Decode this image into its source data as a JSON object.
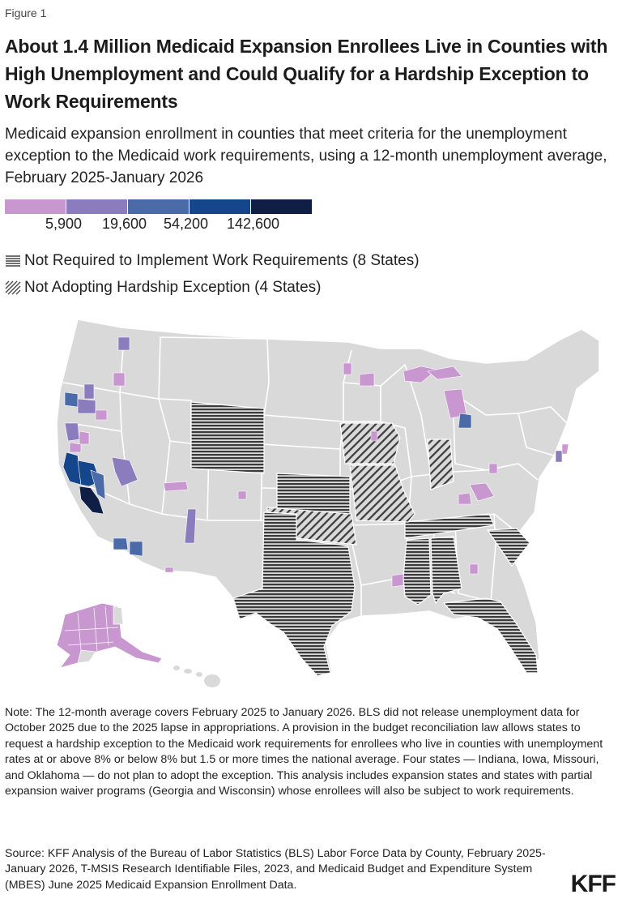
{
  "figure_label": "Figure 1",
  "title": "About 1.4 Million Medicaid Expansion Enrollees Live in Counties with High Unemployment and Could Qualify for a Hardship Exception to Work Requirements",
  "subtitle": "Medicaid expansion enrollment in counties that meet criteria for the unemployment exception to the Medicaid work requirements, using a 12-month unemployment average, February 2025-January 2026",
  "legend": {
    "colors": [
      "#c997cf",
      "#8a7cbd",
      "#4b6aa8",
      "#15468b",
      "#0f1e45"
    ],
    "thresholds": [
      "5,900",
      "19,600",
      "54,200",
      "142,600"
    ]
  },
  "pattern_legend": [
    {
      "id": "horizontal-lines",
      "label": "Not Required to Implement Work Requirements (8 States)"
    },
    {
      "id": "diagonal-lines",
      "label": "Not Adopting Hardship Exception (4 States)"
    }
  ],
  "map_colors": {
    "state_fill": "#d9d9d9",
    "state_border": "#ffffff",
    "pattern_fill": "#3b3b3b"
  },
  "note": "Note: The 12-month average covers February 2025 to January 2026. BLS did not release unemployment data for October 2025 due to the 2025 lapse in appropriations. A provision in the budget reconciliation law allows states to request a hardship exception to the Medicaid work requirements for enrollees who live in counties with unemployment rates at or above 8% or below 8% but 1.5 or more times the national average. Four states — Indiana, Iowa, Missouri, and Oklahoma — do not plan to adopt the exception. This analysis includes expansion states and states with partial expansion waiver programs (Georgia and Wisconsin) whose enrollees will also be subject to work requirements.",
  "source": "Source: KFF Analysis of the Bureau of Labor Statistics (BLS) Labor Force Data by County, February 2025-January 2026, T-MSIS Research Identifiable Files, 2023, and Medicaid Budget and Expenditure System (MBES) June 2025 Medicaid Expansion Enrollment Data.",
  "logo": "KFF"
}
